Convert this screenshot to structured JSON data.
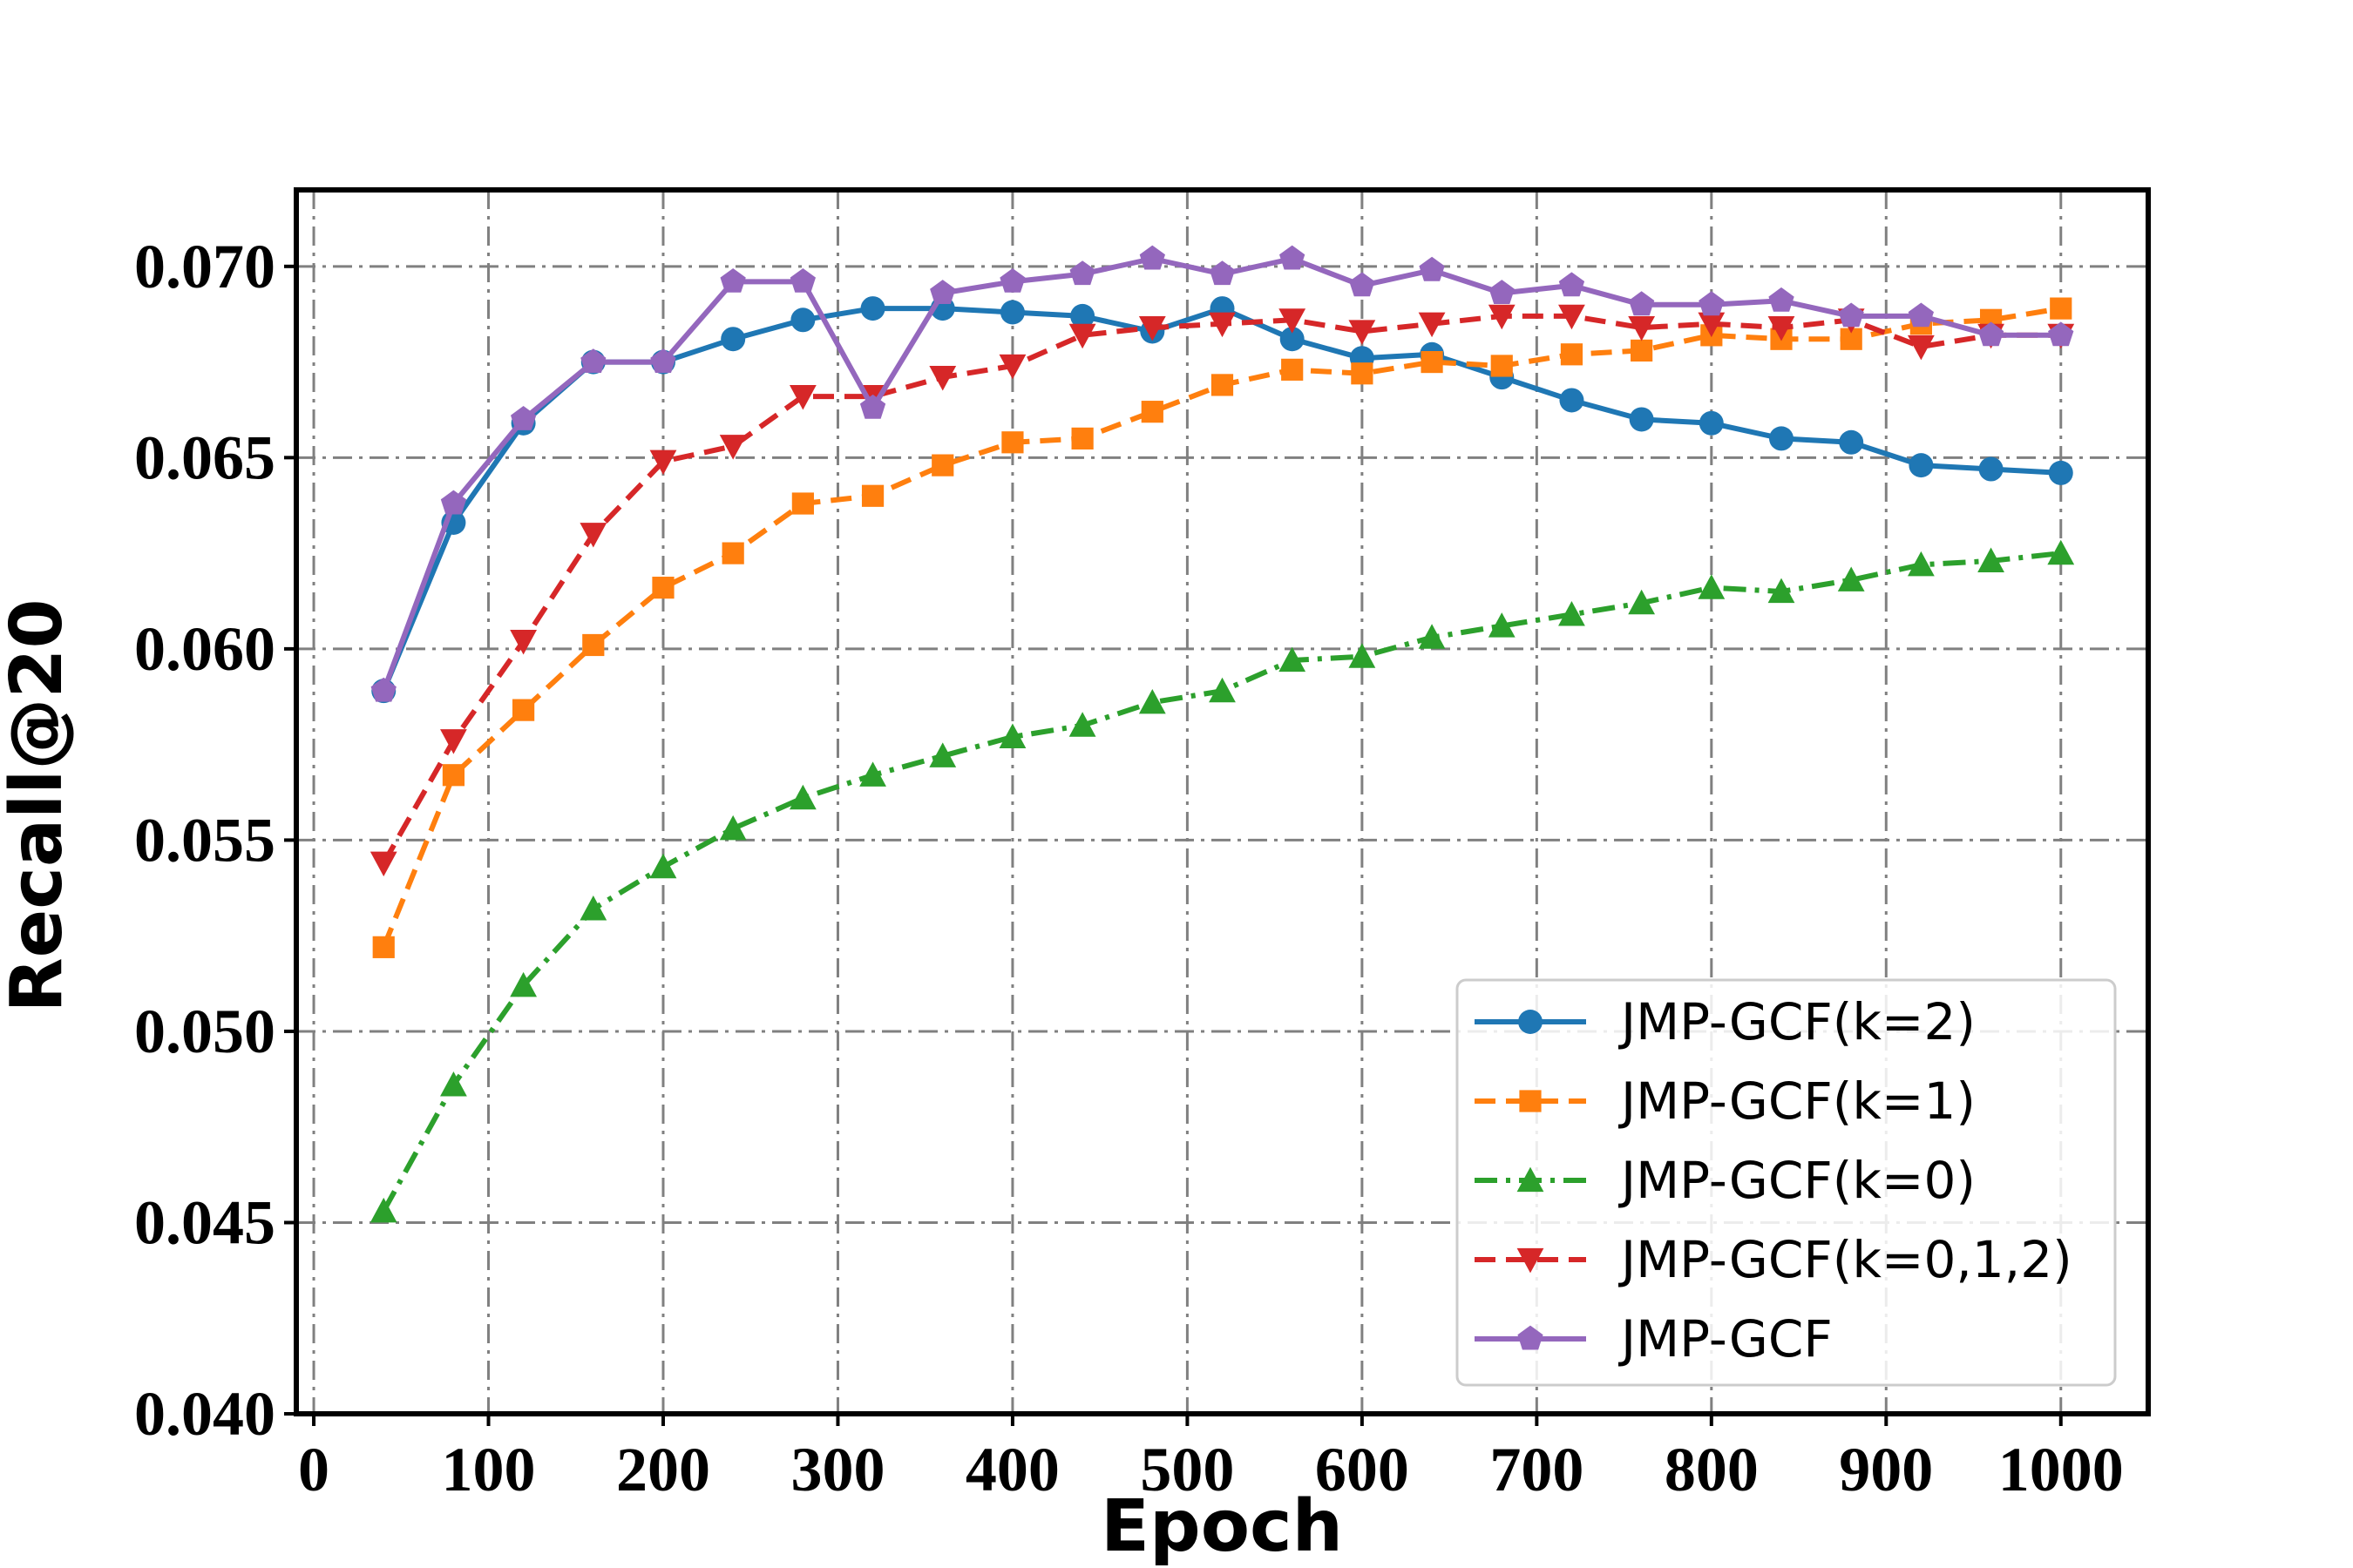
{
  "chart_data": {
    "type": "line",
    "xlabel": "Epoch",
    "ylabel": "Recall@20",
    "xlim": [
      -10,
      1050
    ],
    "ylim": [
      0.04,
      0.072
    ],
    "xticks": [
      0,
      100,
      200,
      300,
      400,
      500,
      600,
      700,
      800,
      900,
      1000
    ],
    "yticks": [
      0.04,
      0.045,
      0.05,
      0.055,
      0.06,
      0.065,
      0.07
    ],
    "ytick_labels": [
      "0.040",
      "0.045",
      "0.050",
      "0.055",
      "0.060",
      "0.065",
      "0.070"
    ],
    "grid": true,
    "legend_position": "bottom-right",
    "x": [
      40,
      80,
      120,
      160,
      200,
      240,
      280,
      320,
      360,
      400,
      440,
      480,
      520,
      560,
      600,
      640,
      680,
      720,
      760,
      800,
      840,
      880,
      920,
      960,
      1000
    ],
    "series": [
      {
        "name": "JMP-GCF(k=2)",
        "color": "#1f77b4",
        "linestyle": "solid",
        "marker": "circle",
        "values": [
          0.0589,
          0.0633,
          0.0659,
          0.0675,
          0.0675,
          0.0681,
          0.0686,
          0.0689,
          0.0689,
          0.0688,
          0.0687,
          0.0683,
          0.0689,
          0.0681,
          0.0676,
          0.0677,
          0.0671,
          0.0665,
          0.066,
          0.0659,
          0.0655,
          0.0654,
          0.0648,
          0.0647,
          0.0646
        ]
      },
      {
        "name": "JMP-GCF(k=1)",
        "color": "#ff7f0e",
        "linestyle": "dashed",
        "marker": "square",
        "values": [
          0.0522,
          0.0567,
          0.0584,
          0.0601,
          0.0616,
          0.0625,
          0.0638,
          0.064,
          0.0648,
          0.0654,
          0.0655,
          0.0662,
          0.0669,
          0.0673,
          0.0672,
          0.0675,
          0.0674,
          0.0677,
          0.0678,
          0.0682,
          0.0681,
          0.0681,
          0.0685,
          0.0686,
          0.0689
        ]
      },
      {
        "name": "JMP-GCF(k=0)",
        "color": "#2ca02c",
        "linestyle": "dashdot",
        "marker": "triangle-up",
        "values": [
          0.0453,
          0.0486,
          0.0512,
          0.0532,
          0.0543,
          0.0553,
          0.0561,
          0.0567,
          0.0572,
          0.0577,
          0.058,
          0.0586,
          0.0589,
          0.0597,
          0.0598,
          0.0603,
          0.0606,
          0.0609,
          0.0612,
          0.0616,
          0.0615,
          0.0618,
          0.0622,
          0.0623,
          0.0625
        ]
      },
      {
        "name": "JMP-GCF(k=0,1,2)",
        "color": "#d62728",
        "linestyle": "dashed",
        "marker": "triangle-down",
        "values": [
          0.0544,
          0.0576,
          0.0602,
          0.063,
          0.0649,
          0.0653,
          0.0666,
          0.0666,
          0.0671,
          0.0674,
          0.0682,
          0.0684,
          0.0685,
          0.0686,
          0.0683,
          0.0685,
          0.0687,
          0.0687,
          0.0684,
          0.0685,
          0.0684,
          0.0686,
          0.0679,
          0.0682,
          0.0682
        ]
      },
      {
        "name": "JMP-GCF",
        "color": "#9467bd",
        "linestyle": "solid",
        "marker": "pentagon",
        "values": [
          0.0589,
          0.0638,
          0.066,
          0.0675,
          0.0675,
          0.0696,
          0.0696,
          0.0663,
          0.0693,
          0.0696,
          0.0698,
          0.0702,
          0.0698,
          0.0702,
          0.0695,
          0.0699,
          0.0693,
          0.0695,
          0.069,
          0.069,
          0.0691,
          0.0687,
          0.0687,
          0.0682,
          0.0682
        ]
      }
    ]
  }
}
